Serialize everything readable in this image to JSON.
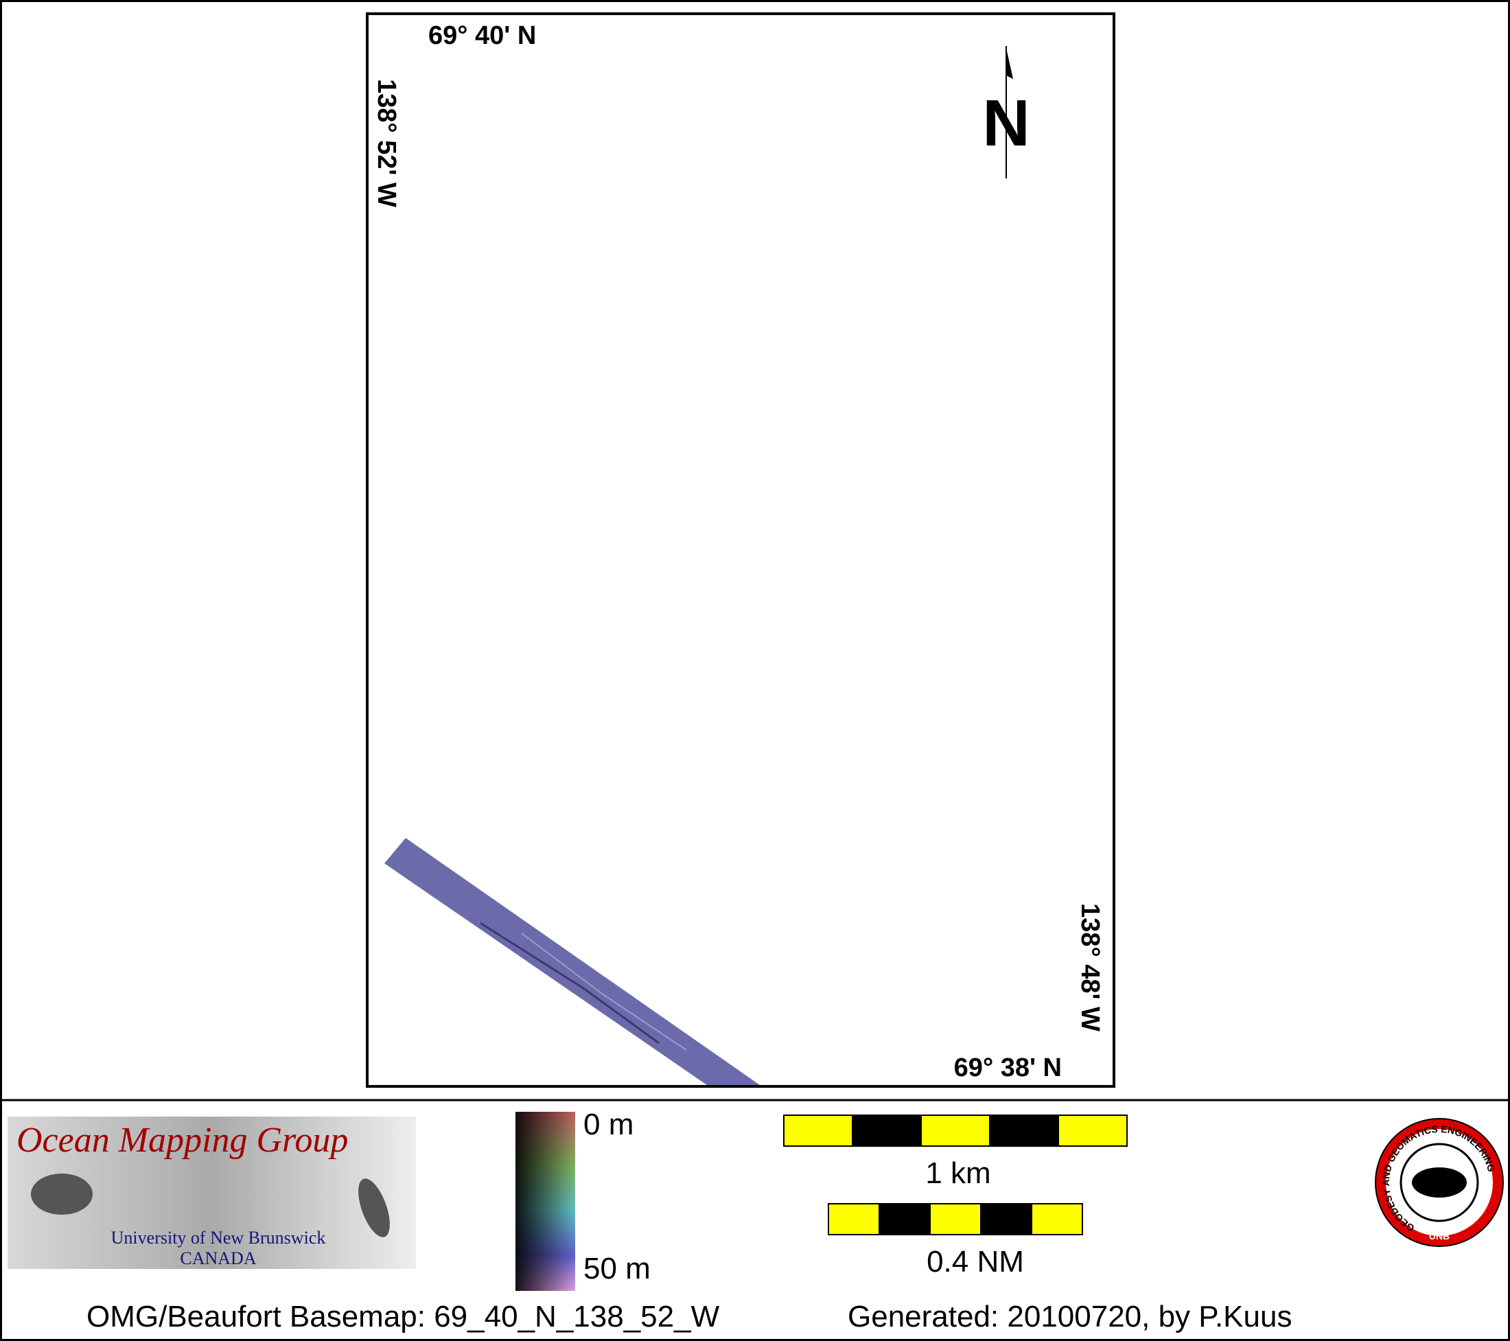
{
  "map": {
    "frame_labels": {
      "top_lat": "69° 40' N",
      "left_lon": "138° 52' W",
      "bottom_lat": "69° 38' N",
      "right_lon": "138° 48' W"
    },
    "north_arrow": "N"
  },
  "legend": {
    "logo": {
      "title": "Ocean Mapping Group",
      "university": "University of New Brunswick",
      "country": "CANADA"
    },
    "depth_scale": {
      "top": "0 m",
      "bottom": "50 m"
    },
    "scale_bars": [
      "1 km",
      "0.4 NM"
    ],
    "seal": {
      "ring": "GEODESY AND GEOMATICS ENGINEERING",
      "bottom": "UNB"
    }
  },
  "footer": {
    "basemap": "OMG/Beaufort Basemap: 69_40_N_138_52_W",
    "generated": "Generated: 20100720, by P.Kuus"
  }
}
